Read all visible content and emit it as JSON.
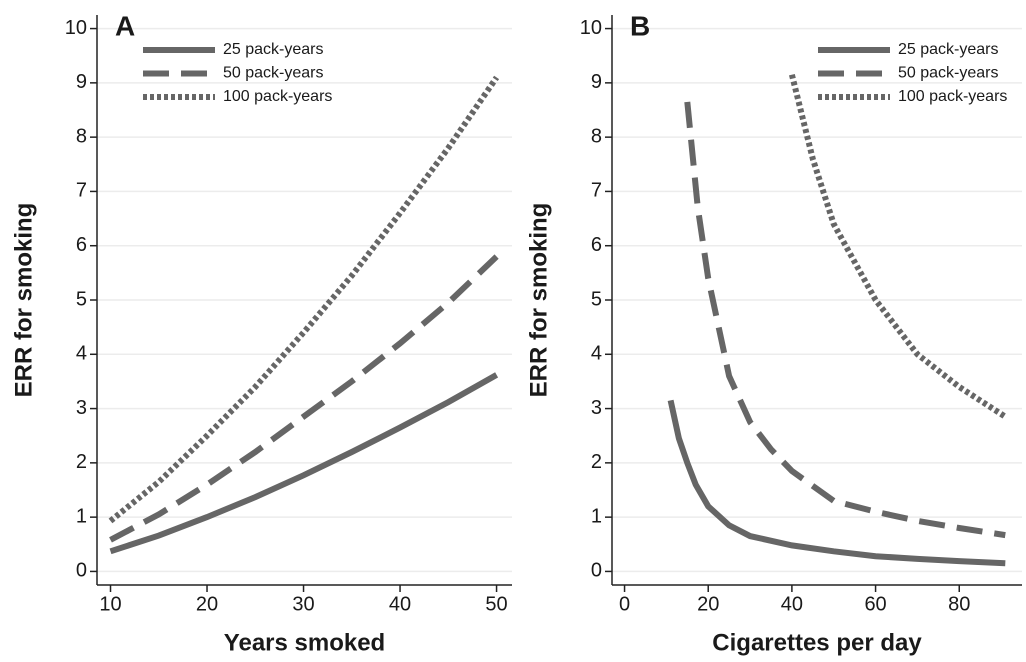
{
  "chart_data": [
    {
      "type": "line",
      "panel_label": "A",
      "x_label": "Years smoked",
      "y_label": "ERR for smoking",
      "xlim": [
        8.6,
        51.6
      ],
      "xticks": [
        10,
        20,
        30,
        40,
        50
      ],
      "ylim": [
        -0.25,
        10.25
      ],
      "yticks": [
        0,
        1,
        2,
        3,
        4,
        5,
        6,
        7,
        8,
        9,
        10
      ],
      "grid": true,
      "legend": "top-left",
      "series": [
        {
          "name": "25 pack-years",
          "color": "#666666",
          "dash": "solid",
          "x": [
            10,
            15,
            20,
            25,
            30,
            35,
            40,
            45,
            50
          ],
          "values": [
            0.37,
            0.66,
            1.0,
            1.37,
            1.77,
            2.2,
            2.65,
            3.12,
            3.62
          ]
        },
        {
          "name": "50 pack-years",
          "color": "#666666",
          "dash": "dashed",
          "x": [
            10,
            15,
            20,
            25,
            30,
            35,
            40,
            45,
            50
          ],
          "values": [
            0.58,
            1.05,
            1.6,
            2.2,
            2.85,
            3.5,
            4.2,
            4.95,
            5.8
          ]
        },
        {
          "name": "100 pack-years",
          "color": "#666666",
          "dash": "dotted",
          "x": [
            10,
            15,
            20,
            25,
            30,
            35,
            40,
            45,
            50
          ],
          "values": [
            0.93,
            1.65,
            2.5,
            3.4,
            4.4,
            5.45,
            6.6,
            7.8,
            9.1
          ]
        }
      ]
    },
    {
      "type": "line",
      "panel_label": "B",
      "x_label": "Cigarettes per day",
      "y_label": "ERR for smoking",
      "xlim": [
        -3,
        95
      ],
      "xticks": [
        0,
        20,
        40,
        60,
        80
      ],
      "ylim": [
        -0.25,
        10.25
      ],
      "yticks": [
        0,
        1,
        2,
        3,
        4,
        5,
        6,
        7,
        8,
        9,
        10
      ],
      "grid": true,
      "legend": "top-right",
      "series": [
        {
          "name": "25 pack-years",
          "color": "#666666",
          "dash": "solid",
          "x": [
            11,
            13,
            15,
            17,
            20,
            25,
            30,
            40,
            50,
            60,
            70,
            80,
            91
          ],
          "values": [
            3.15,
            2.45,
            2.0,
            1.6,
            1.2,
            0.85,
            0.65,
            0.48,
            0.37,
            0.28,
            0.23,
            0.19,
            0.15
          ]
        },
        {
          "name": "50 pack-years",
          "color": "#666666",
          "dash": "dashed",
          "x": [
            15,
            17.5,
            20,
            25,
            30,
            35,
            40,
            50,
            60,
            70,
            80,
            91
          ],
          "values": [
            8.65,
            6.7,
            5.4,
            3.6,
            2.75,
            2.25,
            1.85,
            1.3,
            1.1,
            0.93,
            0.8,
            0.67
          ]
        },
        {
          "name": "100 pack-years",
          "color": "#666666",
          "dash": "dotted",
          "x": [
            40,
            45,
            50,
            60,
            70,
            80,
            91
          ],
          "values": [
            9.15,
            7.6,
            6.4,
            5.0,
            4.0,
            3.4,
            2.85
          ]
        }
      ]
    }
  ]
}
